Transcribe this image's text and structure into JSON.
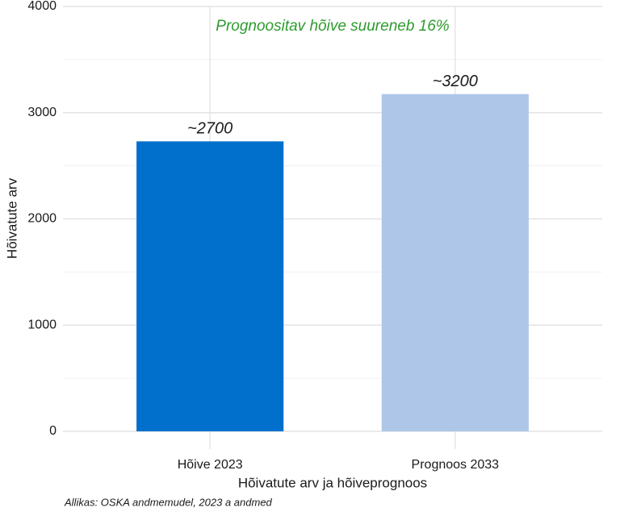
{
  "chart_data": {
    "type": "bar",
    "annotation": "Prognoositav hõive suureneb 16%",
    "annotation_color": "#2e9b2e",
    "x_label": "Hõivatute arv ja hõiveprognoos",
    "y_label": "Hõivatute arv",
    "caption": "Allikas: OSKA andmemudel, 2023 a andmed",
    "categories": [
      "Hõive 2023",
      "Prognoos 2033"
    ],
    "values": [
      2730,
      3175
    ],
    "value_labels": [
      "~2700",
      "~3200"
    ],
    "colors": [
      "#0070cc",
      "#aec7e8"
    ],
    "ylim": [
      0,
      4000
    ],
    "yticks": [
      0,
      1000,
      2000,
      3000,
      4000
    ],
    "minor_yticks": [
      500,
      1500,
      2500,
      3500
    ],
    "grid": true
  }
}
